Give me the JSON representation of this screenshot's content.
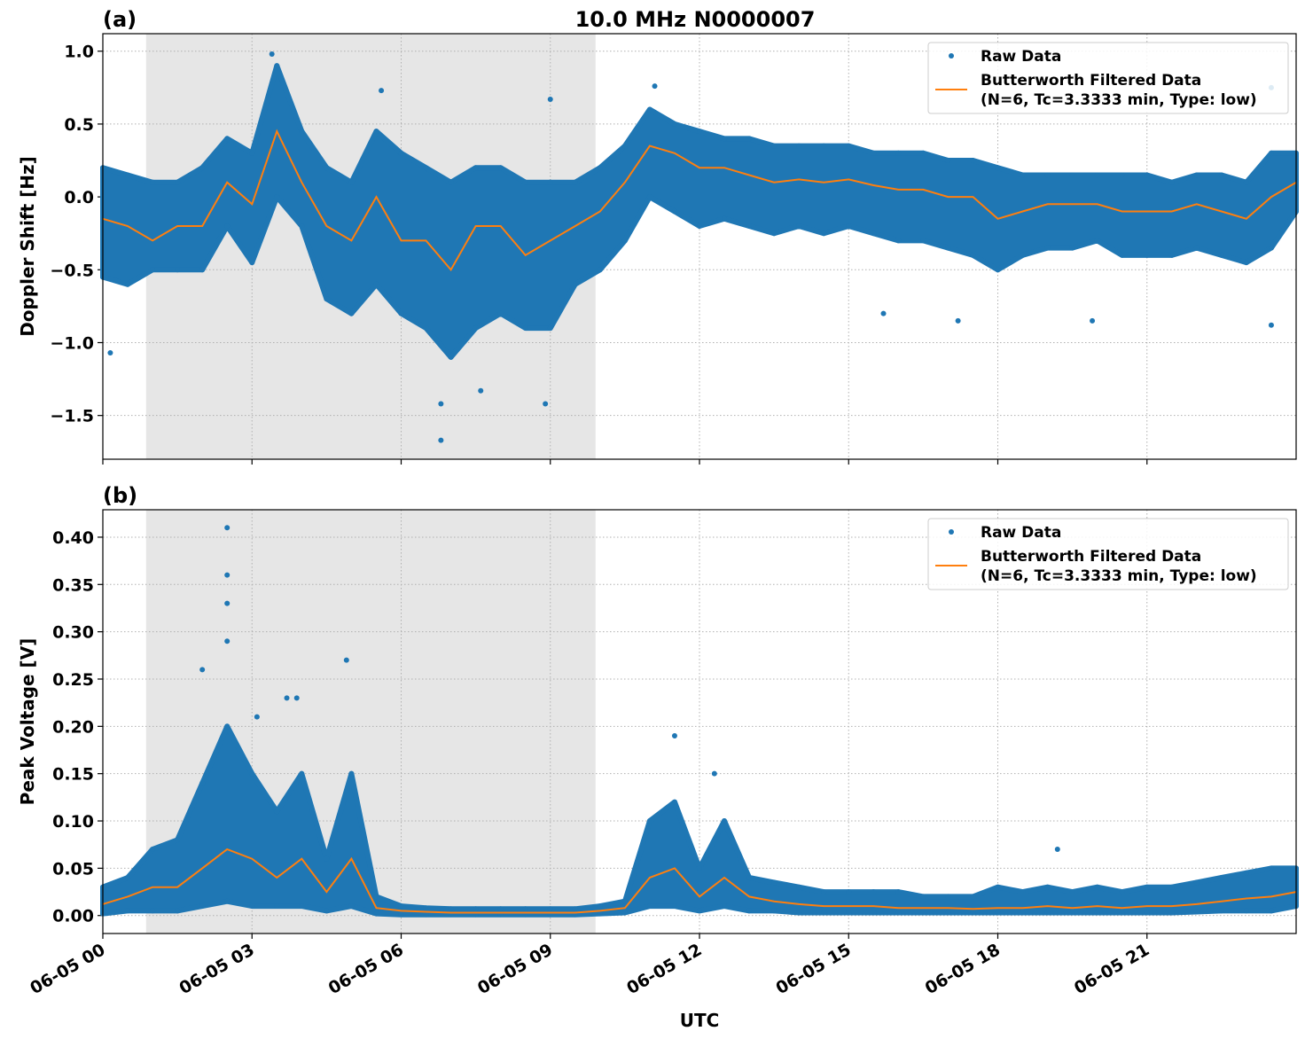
{
  "figure_title": "10.0 MHz N0000007",
  "colors": {
    "raw": "#1f77b4",
    "filtered": "#ff7f0e",
    "shade": "#e6e6e6",
    "grid": "#b0b0b0"
  },
  "chart_data": [
    {
      "panel_label": "(a)",
      "type": "scatter+line",
      "ylabel": "Doppler Shift [Hz]",
      "xlabel": "",
      "xlim_hours": [
        0,
        24
      ],
      "ylim": [
        -1.8,
        1.12
      ],
      "yticks": [
        1.0,
        0.5,
        0.0,
        -0.5,
        -1.0,
        -1.5
      ],
      "ytick_labels": [
        "1.0",
        "0.5",
        "0.0",
        "−0.5",
        "−1.0",
        "−1.5"
      ],
      "grid": true,
      "shaded_interval_hours": [
        0.87,
        9.91
      ],
      "legend": {
        "placement": "top-right",
        "entries": [
          "Raw Data",
          "Butterworth Filtered Data",
          "(N=6, Tc=3.3333 min, Type: low)"
        ]
      },
      "x_hours": [
        0,
        0.5,
        1,
        1.5,
        2,
        2.5,
        3,
        3.5,
        4,
        4.5,
        5,
        5.5,
        6,
        6.5,
        7,
        7.5,
        8,
        8.5,
        9,
        9.5,
        10,
        10.5,
        11,
        11.5,
        12,
        12.5,
        13,
        13.5,
        14,
        14.5,
        15,
        15.5,
        16,
        16.5,
        17,
        17.5,
        18,
        18.5,
        19,
        19.5,
        20,
        20.5,
        21,
        21.5,
        22,
        22.5,
        23,
        23.5,
        24
      ],
      "filtered": [
        -0.15,
        -0.2,
        -0.3,
        -0.2,
        -0.2,
        0.1,
        -0.05,
        0.45,
        0.1,
        -0.2,
        -0.3,
        0.0,
        -0.3,
        -0.3,
        -0.5,
        -0.2,
        -0.2,
        -0.4,
        -0.3,
        -0.2,
        -0.1,
        0.1,
        0.35,
        0.3,
        0.2,
        0.2,
        0.15,
        0.1,
        0.12,
        0.1,
        0.12,
        0.08,
        0.05,
        0.05,
        0.0,
        0.0,
        -0.15,
        -0.1,
        -0.05,
        -0.05,
        -0.05,
        -0.1,
        -0.1,
        -0.1,
        -0.05,
        -0.1,
        -0.15,
        0.0,
        0.1
      ],
      "raw_low": [
        -0.55,
        -0.6,
        -0.5,
        -0.5,
        -0.5,
        -0.2,
        -0.45,
        0.0,
        -0.2,
        -0.7,
        -0.8,
        -0.6,
        -0.8,
        -0.9,
        -1.1,
        -0.9,
        -0.8,
        -0.9,
        -0.9,
        -0.6,
        -0.5,
        -0.3,
        0.0,
        -0.1,
        -0.2,
        -0.15,
        -0.2,
        -0.25,
        -0.2,
        -0.25,
        -0.2,
        -0.25,
        -0.3,
        -0.3,
        -0.35,
        -0.4,
        -0.5,
        -0.4,
        -0.35,
        -0.35,
        -0.3,
        -0.4,
        -0.4,
        -0.4,
        -0.35,
        -0.4,
        -0.45,
        -0.35,
        -0.1
      ],
      "raw_high": [
        0.2,
        0.15,
        0.1,
        0.1,
        0.2,
        0.4,
        0.3,
        0.9,
        0.45,
        0.2,
        0.1,
        0.45,
        0.3,
        0.2,
        0.1,
        0.2,
        0.2,
        0.1,
        0.1,
        0.1,
        0.2,
        0.35,
        0.6,
        0.5,
        0.45,
        0.4,
        0.4,
        0.35,
        0.35,
        0.35,
        0.35,
        0.3,
        0.3,
        0.3,
        0.25,
        0.25,
        0.2,
        0.15,
        0.15,
        0.15,
        0.15,
        0.15,
        0.15,
        0.1,
        0.15,
        0.15,
        0.1,
        0.3,
        0.3
      ],
      "outliers": [
        [
          0.15,
          -1.07
        ],
        [
          3.4,
          0.98
        ],
        [
          5.6,
          0.73
        ],
        [
          6.8,
          -1.67
        ],
        [
          6.8,
          -1.42
        ],
        [
          7.6,
          -1.33
        ],
        [
          8.9,
          -1.42
        ],
        [
          9.0,
          0.67
        ],
        [
          11.1,
          0.76
        ],
        [
          15.7,
          -0.8
        ],
        [
          17.2,
          -0.85
        ],
        [
          19.9,
          -0.85
        ],
        [
          23.5,
          0.75
        ],
        [
          23.5,
          -0.88
        ]
      ]
    },
    {
      "panel_label": "(b)",
      "type": "scatter+line",
      "ylabel": "Peak Voltage [V]",
      "xlabel": "UTC",
      "xlim_hours": [
        0,
        24
      ],
      "ylim": [
        -0.019,
        0.429
      ],
      "yticks": [
        0.0,
        0.05,
        0.1,
        0.15,
        0.2,
        0.25,
        0.3,
        0.35,
        0.4
      ],
      "ytick_labels": [
        "0.00",
        "0.05",
        "0.10",
        "0.15",
        "0.20",
        "0.25",
        "0.30",
        "0.35",
        "0.40"
      ],
      "xtick_hours": [
        0,
        3,
        6,
        9,
        12,
        15,
        18,
        21
      ],
      "xtick_labels": [
        "06-05 00",
        "06-05 03",
        "06-05 06",
        "06-05 09",
        "06-05 12",
        "06-05 15",
        "06-05 18",
        "06-05 21"
      ],
      "grid": true,
      "shaded_interval_hours": [
        0.87,
        9.91
      ],
      "legend": {
        "placement": "top-right",
        "entries": [
          "Raw Data",
          "Butterworth Filtered Data",
          "(N=6, Tc=3.3333 min, Type: low)"
        ]
      },
      "x_hours": [
        0,
        0.5,
        1,
        1.5,
        2,
        2.5,
        3,
        3.5,
        4,
        4.5,
        5,
        5.5,
        6,
        6.5,
        7,
        7.5,
        8,
        8.5,
        9,
        9.5,
        10,
        10.5,
        11,
        11.5,
        12,
        12.5,
        13,
        13.5,
        14,
        14.5,
        15,
        15.5,
        16,
        16.5,
        17,
        17.5,
        18,
        18.5,
        19,
        19.5,
        20,
        20.5,
        21,
        21.5,
        22,
        22.5,
        23,
        23.5,
        24
      ],
      "filtered": [
        0.012,
        0.02,
        0.03,
        0.03,
        0.05,
        0.07,
        0.06,
        0.04,
        0.06,
        0.025,
        0.06,
        0.008,
        0.005,
        0.004,
        0.003,
        0.003,
        0.003,
        0.003,
        0.003,
        0.003,
        0.005,
        0.008,
        0.04,
        0.05,
        0.02,
        0.04,
        0.02,
        0.015,
        0.012,
        0.01,
        0.01,
        0.01,
        0.008,
        0.008,
        0.008,
        0.007,
        0.008,
        0.008,
        0.01,
        0.008,
        0.01,
        0.008,
        0.01,
        0.01,
        0.012,
        0.015,
        0.018,
        0.02,
        0.025
      ],
      "raw_low": [
        0.002,
        0.005,
        0.005,
        0.005,
        0.01,
        0.015,
        0.01,
        0.01,
        0.01,
        0.005,
        0.01,
        0.002,
        0.001,
        0.001,
        0.001,
        0.001,
        0.001,
        0.001,
        0.001,
        0.001,
        0.002,
        0.003,
        0.01,
        0.01,
        0.005,
        0.01,
        0.005,
        0.005,
        0.003,
        0.003,
        0.003,
        0.003,
        0.003,
        0.003,
        0.003,
        0.003,
        0.003,
        0.003,
        0.003,
        0.003,
        0.003,
        0.003,
        0.003,
        0.003,
        0.004,
        0.005,
        0.005,
        0.005,
        0.01
      ],
      "raw_high": [
        0.03,
        0.04,
        0.07,
        0.08,
        0.14,
        0.2,
        0.15,
        0.11,
        0.15,
        0.06,
        0.15,
        0.02,
        0.01,
        0.008,
        0.007,
        0.007,
        0.007,
        0.007,
        0.007,
        0.007,
        0.01,
        0.015,
        0.1,
        0.12,
        0.05,
        0.1,
        0.04,
        0.035,
        0.03,
        0.025,
        0.025,
        0.025,
        0.025,
        0.02,
        0.02,
        0.02,
        0.03,
        0.025,
        0.03,
        0.025,
        0.03,
        0.025,
        0.03,
        0.03,
        0.035,
        0.04,
        0.045,
        0.05,
        0.05
      ],
      "outliers": [
        [
          2.5,
          0.41
        ],
        [
          2.5,
          0.36
        ],
        [
          2.5,
          0.33
        ],
        [
          2.5,
          0.29
        ],
        [
          2.0,
          0.26
        ],
        [
          3.1,
          0.21
        ],
        [
          3.7,
          0.23
        ],
        [
          3.9,
          0.23
        ],
        [
          4.9,
          0.27
        ],
        [
          11.5,
          0.19
        ],
        [
          12.3,
          0.15
        ],
        [
          19.2,
          0.07
        ]
      ]
    }
  ]
}
